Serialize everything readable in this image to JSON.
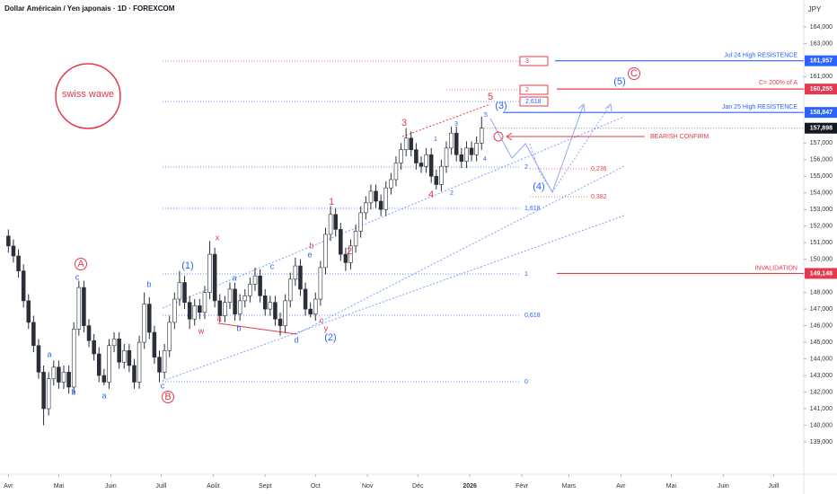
{
  "chart_data": {
    "type": "candlestick",
    "title": "Dollar Américain / Yen japonais · 1D · FOREXCOM",
    "currency": "JPY",
    "logo": "swiss wawe",
    "up_color": "#ffffff",
    "down_color": "#2a2e39",
    "wick_color": "#2a2e39",
    "xlim": [
      -5,
      474
    ],
    "ylim": [
      137050,
      165620
    ],
    "xticks": [
      {
        "value": 0,
        "label": "Avr"
      },
      {
        "value": 30,
        "label": "Mai"
      },
      {
        "value": 61,
        "label": "Juin"
      },
      {
        "value": 91,
        "label": "Juill"
      },
      {
        "value": 122,
        "label": "Août"
      },
      {
        "value": 153,
        "label": "Sept"
      },
      {
        "value": 183,
        "label": "Oct"
      },
      {
        "value": 214,
        "label": "Nov"
      },
      {
        "value": 244,
        "label": "Déc"
      },
      {
        "value": 275,
        "label": "2026"
      },
      {
        "value": 306,
        "label": "Févr"
      },
      {
        "value": 334,
        "label": "Mars"
      },
      {
        "value": 365,
        "label": "Avr"
      },
      {
        "value": 395,
        "label": "Mai"
      },
      {
        "value": 426,
        "label": "Juin"
      },
      {
        "value": 456,
        "label": "Juill"
      }
    ],
    "yticks": [
      {
        "value": 164000,
        "label": "164,000"
      },
      {
        "value": 163000,
        "label": "163,000"
      },
      {
        "value": 161000,
        "label": "161,000"
      },
      {
        "value": 157000,
        "label": "157,000"
      },
      {
        "value": 156000,
        "label": "156,000"
      },
      {
        "value": 155000,
        "label": "155,000"
      },
      {
        "value": 154000,
        "label": "154,000"
      },
      {
        "value": 153000,
        "label": "153,000"
      },
      {
        "value": 152000,
        "label": "152,000"
      },
      {
        "value": 151000,
        "label": "151,000"
      },
      {
        "value": 150000,
        "label": "150,000"
      },
      {
        "value": 148000,
        "label": "148,000"
      },
      {
        "value": 147000,
        "label": "147,000"
      },
      {
        "value": 146000,
        "label": "146,000"
      },
      {
        "value": 145000,
        "label": "145,000"
      },
      {
        "value": 144000,
        "label": "144,000"
      },
      {
        "value": 143000,
        "label": "143,000"
      },
      {
        "value": 142000,
        "label": "142,000"
      },
      {
        "value": 141000,
        "label": "141,000"
      },
      {
        "value": 140000,
        "label": "140,000"
      },
      {
        "value": 139000,
        "label": "139,000"
      }
    ],
    "x": [
      0,
      3,
      6,
      9,
      12,
      15,
      18,
      21,
      24,
      27,
      30,
      33,
      36,
      39,
      42,
      45,
      48,
      51,
      54,
      57,
      60,
      63,
      66,
      69,
      72,
      75,
      78,
      81,
      84,
      87,
      90,
      93,
      96,
      99,
      102,
      105,
      108,
      111,
      114,
      117,
      120,
      123,
      126,
      129,
      132,
      135,
      138,
      141,
      144,
      147,
      150,
      153,
      156,
      159,
      162,
      165,
      168,
      171,
      174,
      177,
      180,
      183,
      186,
      189,
      192,
      195,
      198,
      201,
      204,
      207,
      210,
      213,
      216,
      219,
      222,
      225,
      228,
      231,
      234,
      237,
      240,
      243,
      246,
      249,
      252,
      255,
      258,
      261,
      264,
      267,
      270,
      273,
      276,
      279,
      282
    ],
    "open": [
      151400,
      150800,
      150200,
      149300,
      147500,
      146200,
      144800,
      143200,
      141000,
      142800,
      143500,
      142600,
      143200,
      142300,
      145800,
      148300,
      146000,
      145100,
      144300,
      143000,
      142600,
      144800,
      145200,
      143800,
      144500,
      143600,
      142600,
      145000,
      147300,
      145600,
      144100,
      143200,
      144500,
      146200,
      147600,
      148600,
      147400,
      146400,
      147200,
      146800,
      148000,
      150300,
      147500,
      146600,
      147400,
      148200,
      146700,
      147500,
      147800,
      148500,
      149000,
      147800,
      147000,
      147400,
      146400,
      146000,
      147500,
      148800,
      149600,
      148200,
      147000,
      146700,
      147600,
      149500,
      151500,
      152700,
      151800,
      150300,
      149800,
      150800,
      151700,
      152800,
      153400,
      154100,
      153500,
      153000,
      154300,
      154800,
      155800,
      156600,
      157300,
      156600,
      155800,
      155600,
      156300,
      155000,
      154500,
      155600,
      156700,
      157600,
      156300,
      155900,
      156700,
      156300,
      157000
    ],
    "high": [
      151800,
      151200,
      150600,
      149700,
      147900,
      146600,
      145200,
      143600,
      143200,
      143900,
      143900,
      143600,
      143600,
      146200,
      148700,
      148700,
      146400,
      145500,
      144700,
      143400,
      145200,
      145600,
      145600,
      144900,
      144900,
      144000,
      145400,
      148000,
      147700,
      146000,
      144500,
      144900,
      146600,
      148000,
      149300,
      149000,
      147800,
      147600,
      147600,
      148400,
      151100,
      150700,
      147900,
      147800,
      148600,
      148600,
      147900,
      148200,
      148900,
      149500,
      149400,
      148200,
      147800,
      147800,
      146800,
      147900,
      149200,
      150100,
      150000,
      148600,
      147400,
      148000,
      149900,
      151900,
      153200,
      153100,
      152200,
      150700,
      151200,
      152100,
      153200,
      153800,
      154500,
      154500,
      153900,
      154700,
      155200,
      156200,
      157000,
      157900,
      157700,
      157000,
      156200,
      156700,
      156700,
      155400,
      156000,
      157100,
      158000,
      158000,
      156700,
      157100,
      157100,
      157400,
      158600
    ],
    "low": [
      150400,
      149800,
      148900,
      147100,
      145800,
      144400,
      142800,
      140000,
      140600,
      142400,
      142200,
      142200,
      141900,
      141900,
      145400,
      145600,
      144700,
      143900,
      142600,
      142400,
      142200,
      144400,
      143400,
      143400,
      143200,
      142200,
      142200,
      144600,
      145200,
      143700,
      142600,
      142800,
      144100,
      145800,
      147200,
      147000,
      145800,
      146000,
      146400,
      146400,
      147600,
      147100,
      146200,
      146200,
      147000,
      146300,
      146300,
      147100,
      147400,
      148100,
      147400,
      146600,
      146600,
      146000,
      145400,
      145600,
      147100,
      148400,
      147800,
      146600,
      146500,
      146300,
      147200,
      149100,
      151100,
      151400,
      149900,
      149300,
      149400,
      150400,
      151300,
      152400,
      153000,
      153100,
      152600,
      152600,
      153900,
      154400,
      155400,
      156200,
      156200,
      155400,
      155200,
      155200,
      154600,
      154200,
      154100,
      155200,
      156300,
      155900,
      155500,
      155500,
      155900,
      155900,
      156600
    ],
    "close": [
      150800,
      150200,
      149300,
      147500,
      146200,
      144800,
      143200,
      141000,
      142800,
      143500,
      142600,
      143200,
      142300,
      145800,
      148300,
      146000,
      145100,
      144300,
      143000,
      142600,
      144800,
      145200,
      143800,
      144500,
      143600,
      142600,
      145000,
      147300,
      145600,
      144100,
      143200,
      144500,
      146200,
      147600,
      148600,
      147400,
      146400,
      147200,
      146800,
      148000,
      150300,
      147500,
      146600,
      147400,
      148200,
      146700,
      147500,
      147800,
      148500,
      149000,
      147800,
      147000,
      147400,
      146400,
      146000,
      147500,
      148800,
      149600,
      148200,
      147000,
      146700,
      147600,
      149500,
      151500,
      152700,
      151800,
      150300,
      149800,
      150800,
      151700,
      152800,
      153400,
      154100,
      153500,
      153000,
      154300,
      154800,
      155800,
      156600,
      157300,
      156600,
      155800,
      155600,
      156300,
      155000,
      154500,
      155600,
      156700,
      157600,
      156300,
      155900,
      156700,
      156300,
      157000,
      157898
    ],
    "last_price": {
      "value": 157898,
      "label": "157,898"
    },
    "levels": [
      {
        "value": 161957,
        "label": "161,957",
        "text": "Jul 24 High    RESISTENCE",
        "color": "#2962ff"
      },
      {
        "value": 160255,
        "label": "160,255",
        "text": "C= 200% of A",
        "color": "#e53950"
      },
      {
        "value": 158847,
        "label": "158,847",
        "text": "Jan 25 High    RESISTENCE",
        "color": "#2962ff"
      },
      {
        "value": 149148,
        "label": "149,148",
        "text": "INVALIDATION",
        "color": "#e53950"
      }
    ],
    "signal": "BEARISH CONFIRM",
    "fib_labels": [
      {
        "text": "3",
        "color": "#e53950"
      },
      {
        "text": "2",
        "color": "#e53950"
      },
      {
        "text": "2,618",
        "color": "#2962ff"
      },
      {
        "text": "2",
        "color": "#2962ff"
      },
      {
        "text": "1,618",
        "color": "#2962ff"
      },
      {
        "text": "1",
        "color": "#2962ff"
      },
      {
        "text": "0,618",
        "color": "#2962ff"
      },
      {
        "text": "0",
        "color": "#2962ff"
      },
      {
        "text": "0,236",
        "color": "#e53950"
      },
      {
        "text": "0,382",
        "color": "#e53950"
      }
    ],
    "wave_labels": [
      {
        "text": "x",
        "color": "#e53950"
      },
      {
        "text": "a",
        "color": "#e53950"
      },
      {
        "text": "w",
        "color": "#e53950"
      },
      {
        "text": "b",
        "color": "#e53950"
      },
      {
        "text": "c",
        "color": "#e53950"
      },
      {
        "text": "y",
        "color": "#e53950"
      },
      {
        "text": "1",
        "color": "#e53950"
      },
      {
        "text": "2",
        "color": "#e53950"
      },
      {
        "text": "3",
        "color": "#e53950"
      },
      {
        "text": "4",
        "color": "#e53950"
      },
      {
        "text": "5",
        "color": "#e53950"
      },
      {
        "text": "a",
        "color": "#2962ff"
      },
      {
        "text": "b",
        "color": "#2962ff"
      },
      {
        "text": "a",
        "color": "#2962ff"
      },
      {
        "text": "c",
        "color": "#2962ff"
      },
      {
        "text": "b",
        "color": "#2962ff"
      },
      {
        "text": "c",
        "color": "#2962ff"
      },
      {
        "text": "(1)",
        "color": "#2962ff"
      },
      {
        "text": "a",
        "color": "#2962ff"
      },
      {
        "text": "b",
        "color": "#2962ff"
      },
      {
        "text": "c",
        "color": "#2962ff"
      },
      {
        "text": "d",
        "color": "#2962ff"
      },
      {
        "text": "e",
        "color": "#2962ff"
      },
      {
        "text": "(2)",
        "color": "#2962ff"
      },
      {
        "text": "(3)",
        "color": "#2962ff"
      },
      {
        "text": "(4)",
        "color": "#2962ff"
      },
      {
        "text": "(5)",
        "color": "#2962ff"
      },
      {
        "text": "1",
        "color": "#2962ff"
      },
      {
        "text": "3",
        "color": "#2962ff"
      },
      {
        "text": "2",
        "color": "#2962ff"
      },
      {
        "text": "4",
        "color": "#2962ff"
      },
      {
        "text": "5",
        "color": "#2962ff"
      },
      {
        "text": "A",
        "color": "#e53950"
      },
      {
        "text": "B",
        "color": "#e53950"
      },
      {
        "text": "C",
        "color": "#e53950"
      }
    ]
  }
}
